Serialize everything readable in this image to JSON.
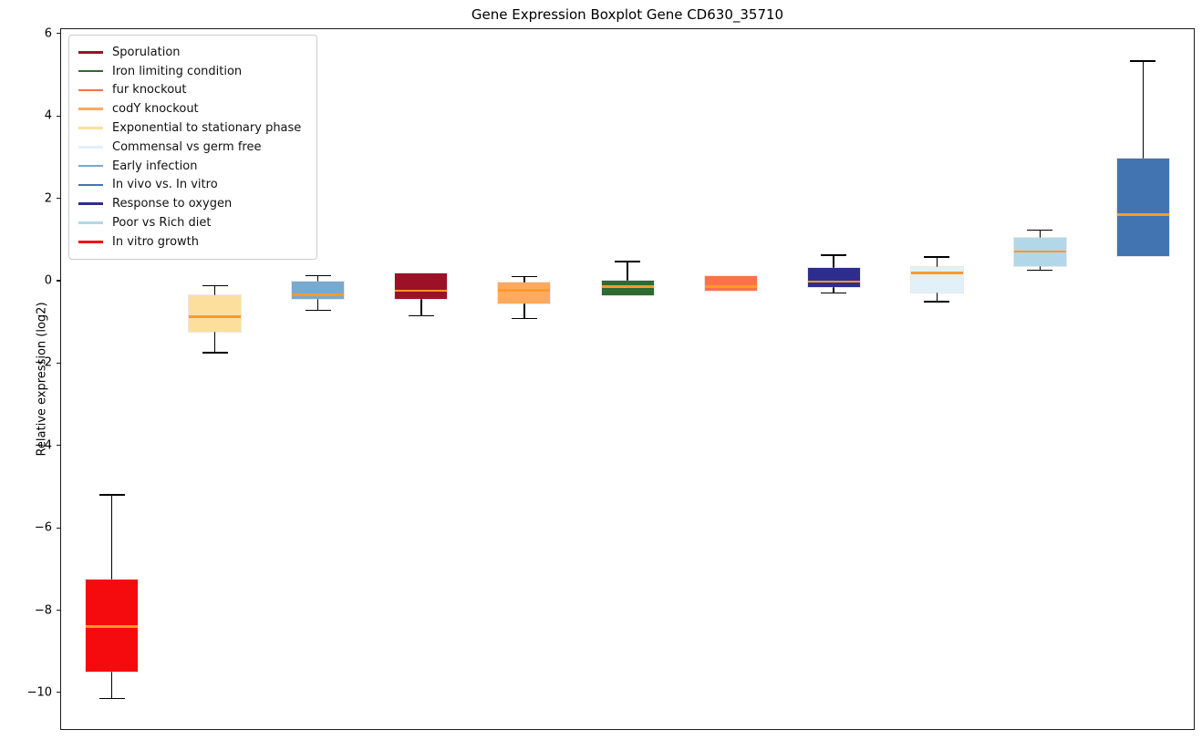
{
  "title": "Gene Expression Boxplot Gene CD630_35710",
  "ylabel": "Relative expression (log2)",
  "legend": {
    "position": "upper left",
    "items": [
      {
        "label": "Sporulation",
        "color": "#9d1126"
      },
      {
        "label": "Iron limiting condition",
        "color": "#2e6b30"
      },
      {
        "label": "fur knockout",
        "color": "#f9724a"
      },
      {
        "label": "codY knockout",
        "color": "#fdaa5f"
      },
      {
        "label": "Exponential to stationary phase",
        "color": "#fcdf9c"
      },
      {
        "label": "Commensal vs germ free",
        "color": "#e2f1f9"
      },
      {
        "label": "Early infection",
        "color": "#77a9d1"
      },
      {
        "label": "In vivo vs. In vitro",
        "color": "#4274b2"
      },
      {
        "label": "Response to oxygen",
        "color": "#2d2d8e"
      },
      {
        "label": "Poor vs Rich diet",
        "color": "#b2d7e8"
      },
      {
        "label": "In vitro growth",
        "color": "#f50a0d"
      }
    ]
  },
  "chart_data": {
    "type": "boxplot",
    "title": "Gene Expression Boxplot Gene CD630_35710",
    "xlabel": "",
    "ylabel": "Relative expression (log2)",
    "ylim": [
      -10.91,
      6.13
    ],
    "yticks": [
      6,
      4,
      2,
      0,
      -2,
      -4,
      -6,
      -8,
      -10
    ],
    "grid": false,
    "legend_position": "upper left",
    "median_color": "#ff9929",
    "whisker_color": "#000000",
    "series": [
      {
        "name": "In vitro growth",
        "color": "#f50a0d",
        "whisker_low": -10.15,
        "q1": -9.5,
        "median": -8.4,
        "q3": -7.25,
        "whisker_high": -5.2
      },
      {
        "name": "Exponential to stationary phase",
        "color": "#fcdf9c",
        "whisker_low": -1.75,
        "q1": -1.25,
        "median": -0.87,
        "q3": -0.36,
        "whisker_high": -0.12
      },
      {
        "name": "Early infection",
        "color": "#77a9d1",
        "whisker_low": -0.72,
        "q1": -0.45,
        "median": -0.34,
        "q3": -0.03,
        "whisker_high": 0.12
      },
      {
        "name": "Sporulation",
        "color": "#9d1126",
        "whisker_low": -0.85,
        "q1": -0.44,
        "median": -0.24,
        "q3": 0.17,
        "whisker_high": 0.17
      },
      {
        "name": "codY knockout",
        "color": "#fdaa5f",
        "whisker_low": -0.92,
        "q1": -0.56,
        "median": -0.23,
        "q3": -0.04,
        "whisker_high": 0.1
      },
      {
        "name": "Iron limiting condition",
        "color": "#2e6b30",
        "whisker_low": -0.36,
        "q1": -0.36,
        "median": -0.14,
        "q3": 0.01,
        "whisker_high": 0.47
      },
      {
        "name": "fur knockout",
        "color": "#f9724a",
        "whisker_low": -0.25,
        "q1": -0.25,
        "median": -0.14,
        "q3": 0.12,
        "whisker_high": 0.12
      },
      {
        "name": "Response to oxygen",
        "color": "#2d2d8e",
        "whisker_low": -0.3,
        "q1": -0.16,
        "median": -0.02,
        "q3": 0.32,
        "whisker_high": 0.62
      },
      {
        "name": "Commensal vs germ free",
        "color": "#e2f1f9",
        "whisker_low": -0.51,
        "q1": -0.28,
        "median": 0.19,
        "q3": 0.33,
        "whisker_high": 0.58
      },
      {
        "name": "Poor vs Rich diet",
        "color": "#b2d7e8",
        "whisker_low": 0.25,
        "q1": 0.36,
        "median": 0.71,
        "q3": 1.05,
        "whisker_high": 1.23
      },
      {
        "name": "In vivo vs. In vitro",
        "color": "#4274b2",
        "whisker_low": 0.6,
        "q1": 0.6,
        "median": 1.61,
        "q3": 2.96,
        "whisker_high": 5.33
      }
    ]
  }
}
